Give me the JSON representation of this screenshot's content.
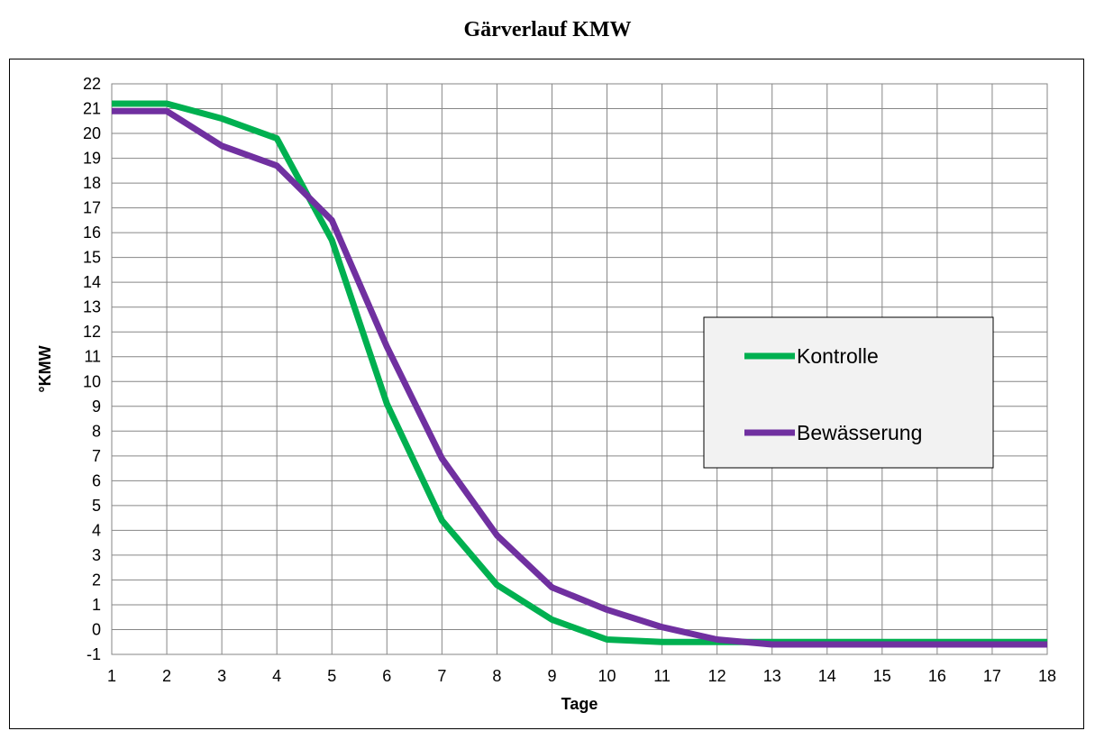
{
  "chart_data": {
    "type": "line",
    "title": "Gärverlauf KMW",
    "xlabel": "Tage",
    "ylabel": "°KMW",
    "x": [
      1,
      2,
      3,
      4,
      5,
      6,
      7,
      8,
      9,
      10,
      11,
      12,
      13,
      14,
      15,
      16,
      17,
      18
    ],
    "xlim": [
      1,
      18
    ],
    "ylim": [
      -1,
      22
    ],
    "y_ticks": [
      -1,
      0,
      1,
      2,
      3,
      4,
      5,
      6,
      7,
      8,
      9,
      10,
      11,
      12,
      13,
      14,
      15,
      16,
      17,
      18,
      19,
      20,
      21,
      22
    ],
    "grid": true,
    "legend_position": "right",
    "series": [
      {
        "name": "Kontrolle",
        "color": "#00B050",
        "values": [
          21.2,
          21.2,
          20.6,
          19.8,
          15.7,
          9.1,
          4.4,
          1.8,
          0.4,
          -0.4,
          -0.5,
          -0.5,
          -0.5,
          -0.5,
          -0.5,
          -0.5,
          -0.5,
          -0.5
        ]
      },
      {
        "name": "Bewässerung",
        "color": "#7030A0",
        "values": [
          20.9,
          20.9,
          19.5,
          18.7,
          16.5,
          11.4,
          6.9,
          3.8,
          1.7,
          0.8,
          0.1,
          -0.4,
          -0.6,
          -0.6,
          -0.6,
          -0.6,
          -0.6,
          -0.6
        ]
      }
    ]
  }
}
